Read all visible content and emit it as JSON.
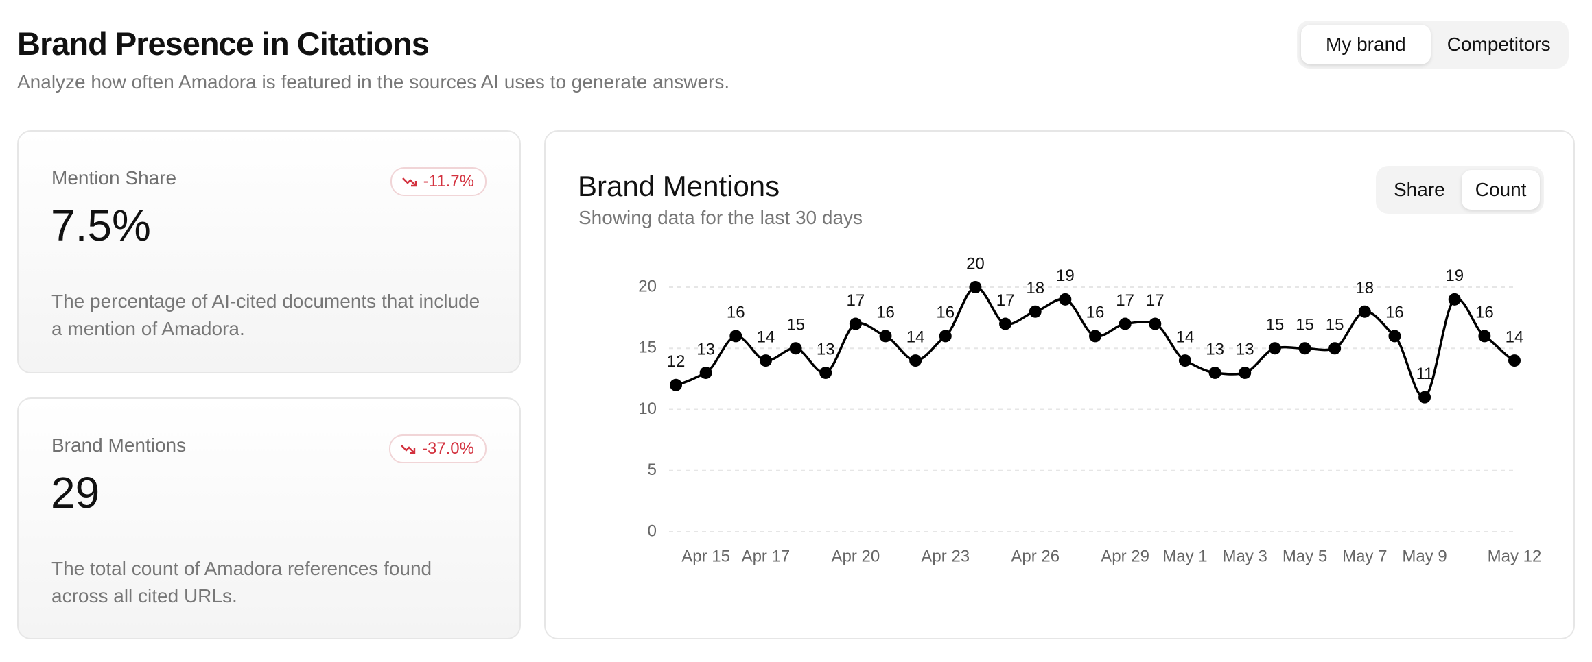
{
  "header": {
    "title": "Brand Presence in Citations",
    "subtitle": "Analyze how often Amadora is featured in the sources AI uses to generate answers."
  },
  "toggle": [
    "My brand",
    "Competitors"
  ],
  "cards": [
    {
      "label": "Mention Share",
      "value": "7.5%",
      "change": "-11.7%",
      "description": "The percentage of AI-cited documents that include a mention of Amadora."
    },
    {
      "label": "Brand Mentions",
      "value": "29",
      "change": "-37.0%",
      "description": "The total count of Amadora references found across all cited URLs."
    }
  ],
  "chart_data": {
    "type": "line",
    "title": "Brand Mentions",
    "subtitle": "Showing data for the last 30 days",
    "toggle": [
      "Share",
      "Count"
    ],
    "categories": [
      null,
      "Apr 15",
      null,
      "Apr 17",
      null,
      null,
      "Apr 20",
      null,
      null,
      "Apr 23",
      null,
      null,
      "Apr 26",
      null,
      null,
      "Apr 29",
      null,
      "May 1",
      null,
      "May 3",
      null,
      "May 5",
      null,
      "May 7",
      null,
      "May 9",
      null,
      null,
      "May 12"
    ],
    "values": [
      12,
      13,
      16,
      14,
      15,
      13,
      17,
      16,
      14,
      16,
      20,
      17,
      18,
      19,
      16,
      17,
      17,
      14,
      13,
      13,
      15,
      15,
      15,
      18,
      16,
      11,
      19,
      16,
      14
    ],
    "color": "#000000",
    "ylim": [
      0,
      20
    ],
    "yticks": [
      0,
      5,
      10,
      15,
      20
    ],
    "grid": true
  }
}
